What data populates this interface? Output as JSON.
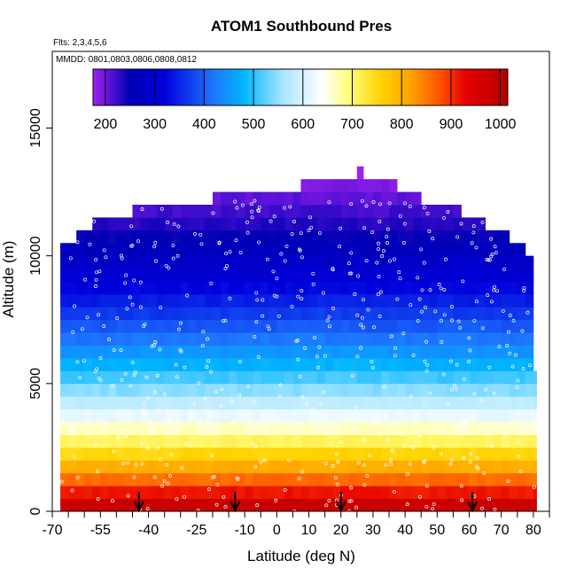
{
  "chart_data": {
    "type": "heatmap",
    "title": "ATOM1 Southbound Pres",
    "subtitle_flights": "Flts: 2,3,4,5,6",
    "subtitle_dates": "MMDD: 0801,0803,0806,0808,0812",
    "xlabel": "Latitude (deg N)",
    "ylabel": "Altitude (m)",
    "xlim": [
      -70,
      85
    ],
    "ylim": [
      0,
      18000
    ],
    "x_ticks": [
      -70,
      -55,
      -40,
      -25,
      -10,
      0,
      10,
      20,
      30,
      40,
      50,
      60,
      70,
      80
    ],
    "x_ticks_unlabeled": [
      -65,
      -60,
      -50,
      -45,
      -35,
      -30,
      -20,
      -15,
      -5,
      5,
      15,
      25,
      35,
      45,
      55,
      65,
      75,
      85
    ],
    "y_ticks": [
      0,
      5000,
      10000,
      15000
    ],
    "colorbar": {
      "ticks": [
        200,
        300,
        400,
        500,
        600,
        700,
        800,
        900,
        1000
      ],
      "range": [
        175,
        1015
      ],
      "stops": [
        {
          "v": 175,
          "c": "#a020f0"
        },
        {
          "v": 250,
          "c": "#0000b4"
        },
        {
          "v": 320,
          "c": "#0000dc"
        },
        {
          "v": 420,
          "c": "#1e78ff"
        },
        {
          "v": 480,
          "c": "#00b4ff"
        },
        {
          "v": 560,
          "c": "#aae6ff"
        },
        {
          "v": 640,
          "c": "#ffffff"
        },
        {
          "v": 690,
          "c": "#ffff7f"
        },
        {
          "v": 760,
          "c": "#ffd200"
        },
        {
          "v": 820,
          "c": "#ffa000"
        },
        {
          "v": 880,
          "c": "#ff5000"
        },
        {
          "v": 930,
          "c": "#e60000"
        },
        {
          "v": 1015,
          "c": "#b40000"
        }
      ]
    },
    "cells": {
      "altitude_bin_m": 500,
      "latitude_bin_deg": 2.5,
      "coverage": [
        {
          "top_m": 13500,
          "lat_min": 25,
          "lat_max": 27
        },
        {
          "top_m": 13000,
          "lat_min": 7.5,
          "lat_max": 37.5
        },
        {
          "top_m": 12500,
          "lat_min": -20,
          "lat_max": 45
        },
        {
          "top_m": 12000,
          "lat_min": -45,
          "lat_max": 57.5
        },
        {
          "top_m": 11500,
          "lat_min": -57.5,
          "lat_max": 65
        },
        {
          "top_m": 11000,
          "lat_min": -62.5,
          "lat_max": 72.5
        },
        {
          "top_m": 10500,
          "lat_min": -67.5,
          "lat_max": 77.5
        },
        {
          "top_m": 10000,
          "lat_min": -67.5,
          "lat_max": 80
        },
        {
          "top_m": 8500,
          "lat_min": -67.5,
          "lat_max": 80
        },
        {
          "top_m": 7000,
          "lat_min": -67.5,
          "lat_max": 80
        },
        {
          "top_m": 5500,
          "lat_min": -67.5,
          "lat_max": 81
        },
        {
          "top_m": 500,
          "lat_min": -67.5,
          "lat_max": 81
        }
      ]
    },
    "profiles_latitudes": [
      -43,
      -13,
      20,
      61
    ],
    "samples_marker": "open-circle",
    "grid": false
  }
}
